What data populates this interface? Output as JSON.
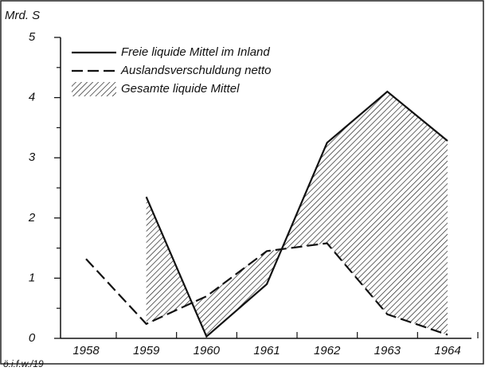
{
  "chart_data": {
    "type": "line",
    "y_label": "Mrd. S",
    "footnote": "ö.i.f.w./19",
    "categories": [
      "1958",
      "1959",
      "1960",
      "1961",
      "1962",
      "1963",
      "1964"
    ],
    "series": [
      {
        "name": "Freie liquide Mittel im Inland",
        "color": "#111111",
        "dash": "solid",
        "values": [
          null,
          2.35,
          0.03,
          0.9,
          3.25,
          4.1,
          3.28
        ]
      },
      {
        "name": "Auslandsverschuldung netto",
        "color": "#111111",
        "dash": "dashed",
        "values": [
          1.32,
          0.24,
          0.7,
          1.45,
          1.58,
          0.4,
          0.06
        ]
      }
    ],
    "area": {
      "name": "Gesamte liquide Mittel",
      "color": "#111111",
      "pattern": "hatch"
    },
    "ylim": [
      0,
      5
    ],
    "yticks": [
      0,
      1,
      2,
      3,
      4,
      5
    ],
    "yticks_minor": [
      0.5,
      1.5,
      2.5,
      3.5,
      4.5
    ],
    "grid": false,
    "legend": "top-left"
  }
}
